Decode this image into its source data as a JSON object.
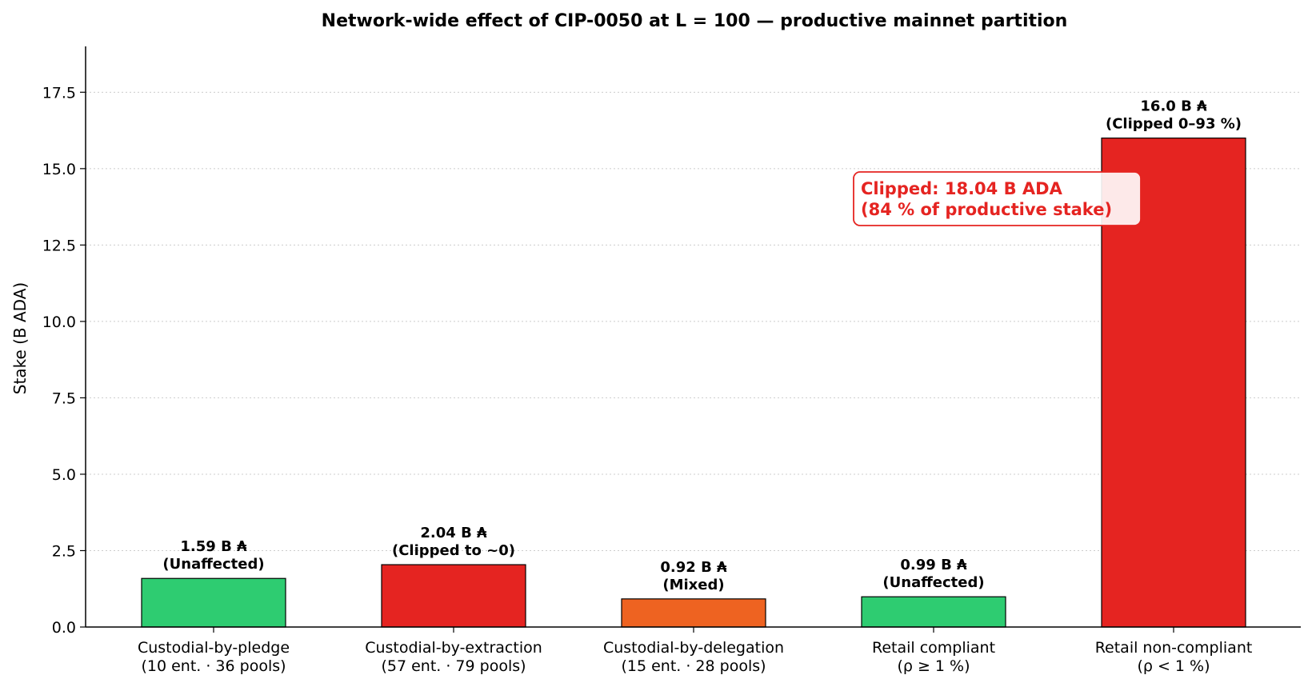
{
  "chart_data": {
    "type": "bar",
    "title": "Network-wide effect of CIP-0050 at L = 100 — productive mainnet partition",
    "xlabel": "",
    "ylabel": "Stake  (B ADA)",
    "ylim": [
      0,
      19
    ],
    "yticks": [
      "0.0",
      "2.5",
      "5.0",
      "7.5",
      "10.0",
      "12.5",
      "15.0",
      "17.5"
    ],
    "grid": "horizontal dotted",
    "categories": [
      [
        "Custodial-by-pledge",
        "(10 ent. · 36 pools)"
      ],
      [
        "Custodial-by-extraction",
        "(57 ent. · 79 pools)"
      ],
      [
        "Custodial-by-delegation",
        "(15 ent. · 28 pools)"
      ],
      [
        "Retail compliant",
        "(ρ ≥ 1 %)"
      ],
      [
        "Retail non-compliant",
        "(ρ < 1 %)"
      ]
    ],
    "values": [
      1.59,
      2.04,
      0.92,
      0.99,
      16.0
    ],
    "bar_labels": [
      [
        "1.59 B ₳",
        "(Unaffected)"
      ],
      [
        "2.04 B ₳",
        "(Clipped to ~0)"
      ],
      [
        "0.92 B ₳",
        "(Mixed)"
      ],
      [
        "0.99 B ₳",
        "(Unaffected)"
      ],
      [
        "16.0 B ₳",
        "(Clipped 0–93 %)"
      ]
    ],
    "colors": [
      "#2ecc71",
      "#e52421",
      "#ee6321",
      "#2ecc71",
      "#e52421"
    ],
    "annotation": {
      "lines": [
        "Clipped: 18.04 B ADA",
        "(84 % of productive stake)"
      ],
      "color": "#e52421"
    }
  }
}
